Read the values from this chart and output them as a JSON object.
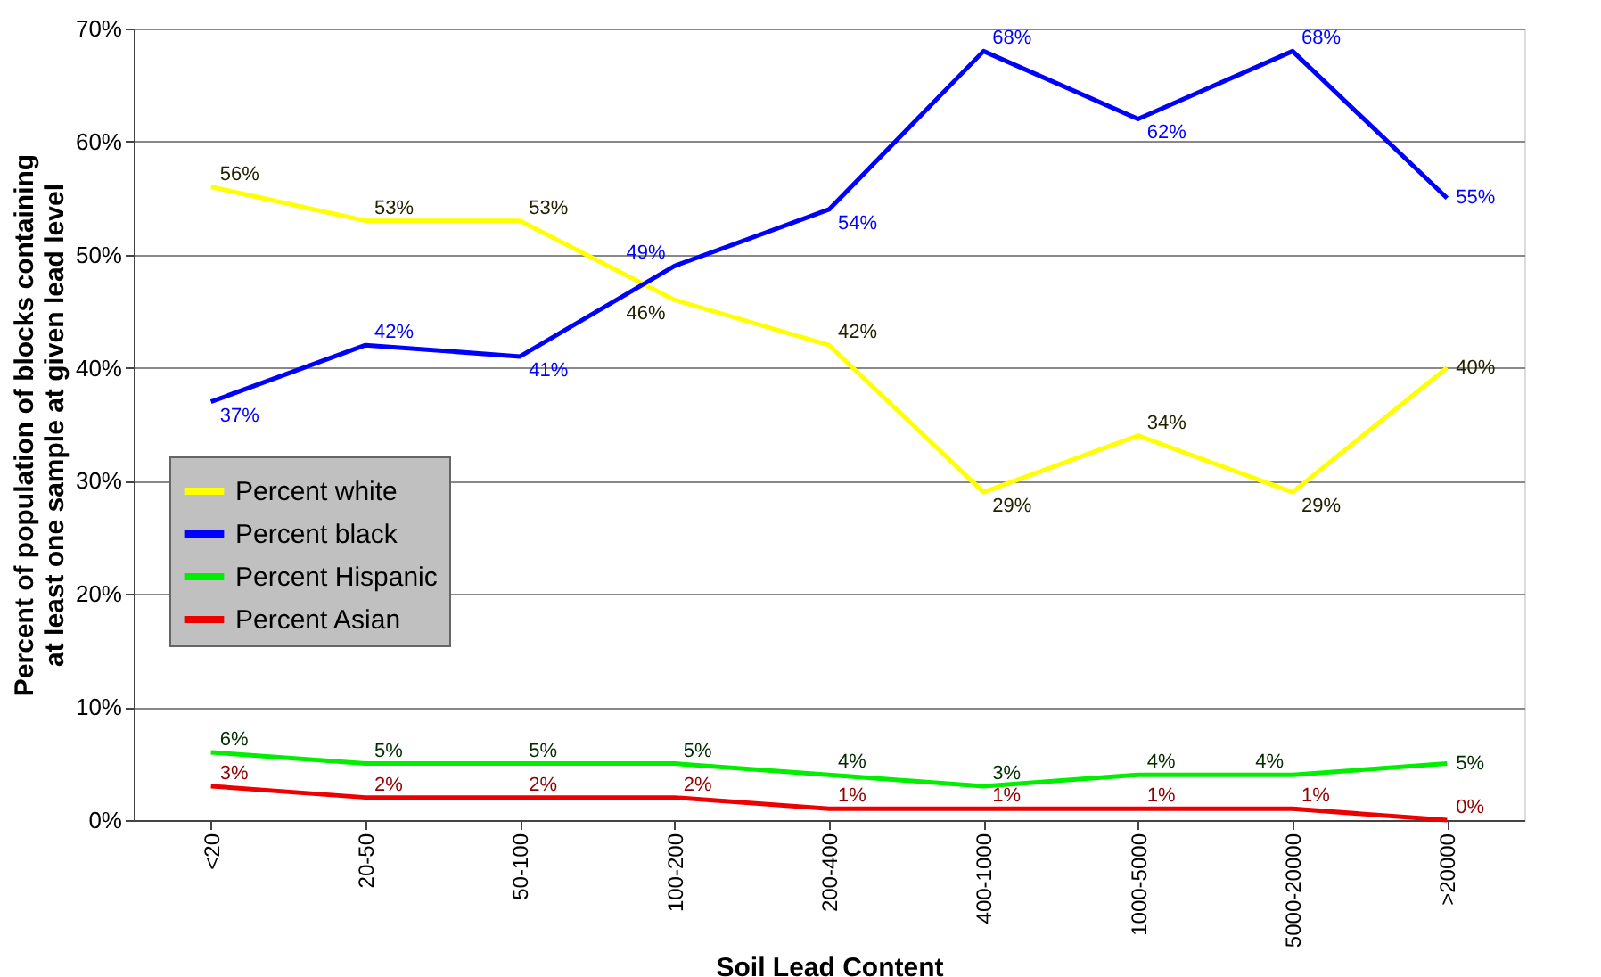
{
  "chart_data": {
    "type": "line",
    "xlabel": "Soil Lead Content",
    "ylabel": "Percent of population of blocks containing at least one sample at given lead level",
    "categories": [
      "<20",
      "20-50",
      "50-100",
      "100-200",
      "200-400",
      "400-1000",
      "1000-5000",
      "5000-20000",
      ">20000"
    ],
    "series": [
      {
        "name": "Percent white",
        "color": "#ffff00",
        "values": [
          56,
          53,
          53,
          46,
          42,
          29,
          34,
          29,
          40
        ],
        "value_labels": [
          "56%",
          "53%",
          "53%",
          "46%",
          "42%",
          "29%",
          "34%",
          "29%",
          "40%"
        ]
      },
      {
        "name": "Percent black",
        "color": "#0000ff",
        "values": [
          37,
          42,
          41,
          49,
          54,
          68,
          62,
          68,
          55
        ],
        "value_labels": [
          "37%",
          "42%",
          "41%",
          "49%",
          "54%",
          "68%",
          "62%",
          "68%",
          "55%"
        ]
      },
      {
        "name": "Percent Hispanic",
        "color": "#00ee00",
        "values": [
          6,
          5,
          5,
          5,
          4,
          3,
          4,
          4,
          5
        ],
        "value_labels": [
          "6%",
          "5%",
          "5%",
          "5%",
          "4%",
          "3%",
          "4%",
          "4%",
          "5%"
        ]
      },
      {
        "name": "Percent Asian",
        "color": "#ee0000",
        "values": [
          3,
          2,
          2,
          2,
          1,
          1,
          1,
          1,
          0
        ],
        "value_labels": [
          "3%",
          "2%",
          "2%",
          "2%",
          "1%",
          "1%",
          "1%",
          "1%",
          "0%"
        ]
      }
    ],
    "ylim": [
      0,
      70
    ],
    "yticks": [
      {
        "value": 0,
        "label": "0%"
      },
      {
        "value": 10,
        "label": "10%"
      },
      {
        "value": 20,
        "label": "20%"
      },
      {
        "value": 30,
        "label": "30%"
      },
      {
        "value": 40,
        "label": "40%"
      },
      {
        "value": 50,
        "label": "50%"
      },
      {
        "value": 60,
        "label": "60%"
      },
      {
        "value": 70,
        "label": "70%"
      }
    ],
    "grid": "y",
    "legend": "left",
    "marker": "none",
    "line_style": "solid"
  }
}
